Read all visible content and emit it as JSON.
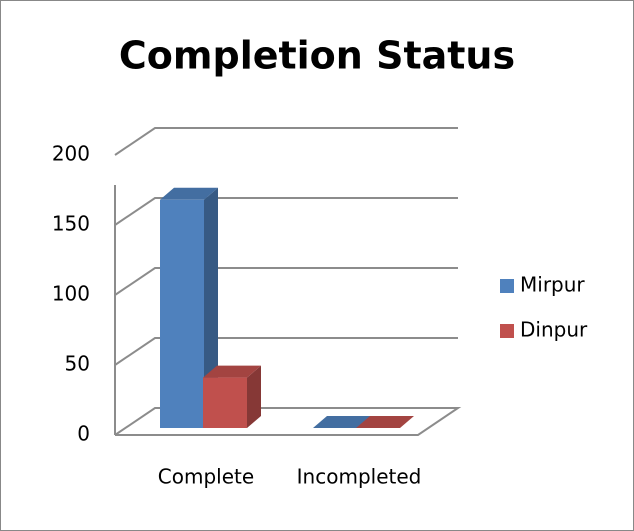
{
  "chart_data": {
    "type": "bar3d",
    "title": "Completion Status",
    "categories": [
      "Complete",
      "Incompleted"
    ],
    "series": [
      {
        "name": "Mirpur",
        "color": "#4f81bd",
        "values": [
          163,
          0
        ]
      },
      {
        "name": "Dinpur",
        "color": "#c0504d",
        "values": [
          36,
          0
        ]
      }
    ],
    "ylim": [
      0,
      200
    ],
    "yticks": [
      0,
      50,
      100,
      150,
      200
    ],
    "grid": true,
    "legend": "right"
  }
}
